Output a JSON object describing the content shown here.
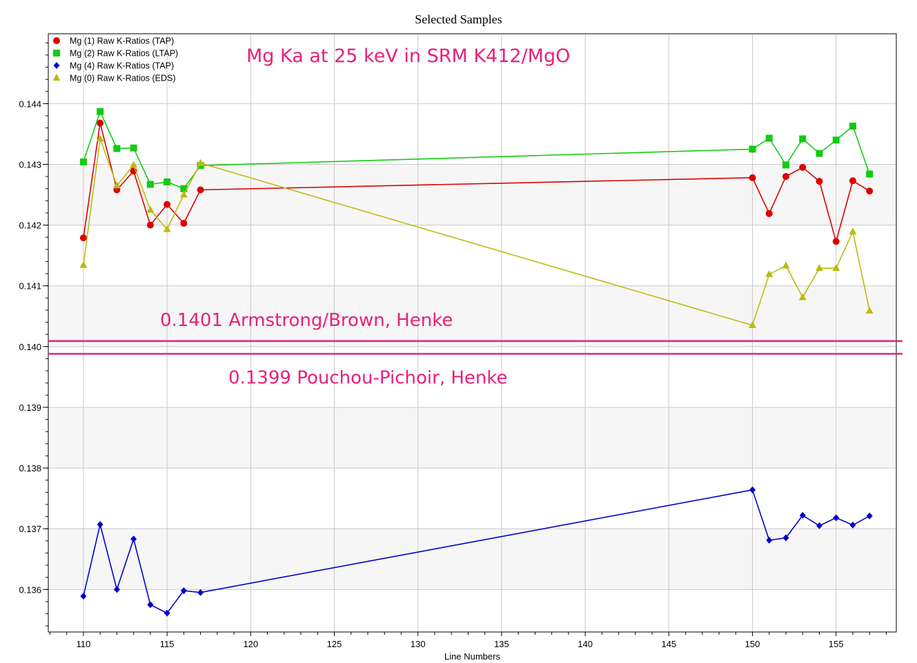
{
  "chart_data": {
    "type": "line",
    "title": "Selected Samples",
    "xlabel": "Line Numbers",
    "ylabel": "",
    "xlim": [
      107.9,
      158.6
    ],
    "ylim": [
      0.1353,
      0.14515
    ],
    "x_ticks": [
      110,
      115,
      120,
      125,
      130,
      135,
      140,
      145,
      150,
      155
    ],
    "y_ticks": [
      0.136,
      0.137,
      0.138,
      0.139,
      0.14,
      0.141,
      0.142,
      0.143,
      0.144
    ],
    "y_tick_labels": [
      "0.136",
      "0.137",
      "0.138",
      "0.139",
      "0.140",
      "0.141",
      "0.142",
      "0.143",
      "0.144"
    ],
    "grid": true,
    "legend_position": "top-left",
    "series": [
      {
        "name": "Mg (1) Raw K-Ratios (TAP)",
        "color": "#dd0000",
        "marker": "circle",
        "x": [
          110,
          111,
          112,
          113,
          114,
          115,
          116,
          117,
          150,
          151,
          152,
          153,
          154,
          155,
          156,
          157
        ],
        "y": [
          0.14179,
          0.14368,
          0.14258,
          0.14289,
          0.142,
          0.14234,
          0.14203,
          0.14258,
          0.14278,
          0.14219,
          0.1428,
          0.14295,
          0.14272,
          0.14173,
          0.14273,
          0.14256
        ]
      },
      {
        "name": "Mg (2) Raw K-Ratios (LTAP)",
        "color": "#11cc11",
        "marker": "square",
        "x": [
          110,
          111,
          112,
          113,
          114,
          115,
          116,
          117,
          150,
          151,
          152,
          153,
          154,
          155,
          156,
          157
        ],
        "y": [
          0.14304,
          0.14387,
          0.14326,
          0.14327,
          0.14267,
          0.14271,
          0.1426,
          0.14298,
          0.14325,
          0.14343,
          0.14299,
          0.14342,
          0.14318,
          0.1434,
          0.14363,
          0.14284
        ]
      },
      {
        "name": "Mg (4) Raw K-Ratios (TAP)",
        "color": "#0000cc",
        "marker": "diamond",
        "x": [
          110,
          111,
          112,
          113,
          114,
          115,
          116,
          117,
          150,
          151,
          152,
          153,
          154,
          155,
          156,
          157
        ],
        "y": [
          0.13589,
          0.13707,
          0.136,
          0.13683,
          0.13575,
          0.13561,
          0.13598,
          0.13595,
          0.13764,
          0.13681,
          0.13685,
          0.13722,
          0.13705,
          0.13718,
          0.13706,
          0.13721
        ]
      },
      {
        "name": "Mg (0) Raw K-Ratios (EDS)",
        "color": "#bbbb11",
        "marker": "triangle",
        "x": [
          110,
          111,
          112,
          113,
          114,
          115,
          116,
          117,
          150,
          151,
          152,
          153,
          154,
          155,
          156,
          157
        ],
        "y": [
          0.14134,
          0.14342,
          0.14265,
          0.14299,
          0.14225,
          0.14193,
          0.1425,
          0.14302,
          0.14035,
          0.14119,
          0.14133,
          0.14081,
          0.14129,
          0.14129,
          0.14189,
          0.14059
        ]
      }
    ],
    "reference_lines": [
      {
        "y": 0.14009,
        "label": "0.1401 Armstrong/Brown, Henke",
        "color": "#e8207a"
      },
      {
        "y": 0.13988,
        "label": "0.1399 Pouchou-Pichoir, Henke",
        "color": "#e8207a"
      }
    ],
    "annotation": {
      "text": "Mg Ka at 25 keV in SRM K412/MgO",
      "color": "#e8207a"
    }
  }
}
